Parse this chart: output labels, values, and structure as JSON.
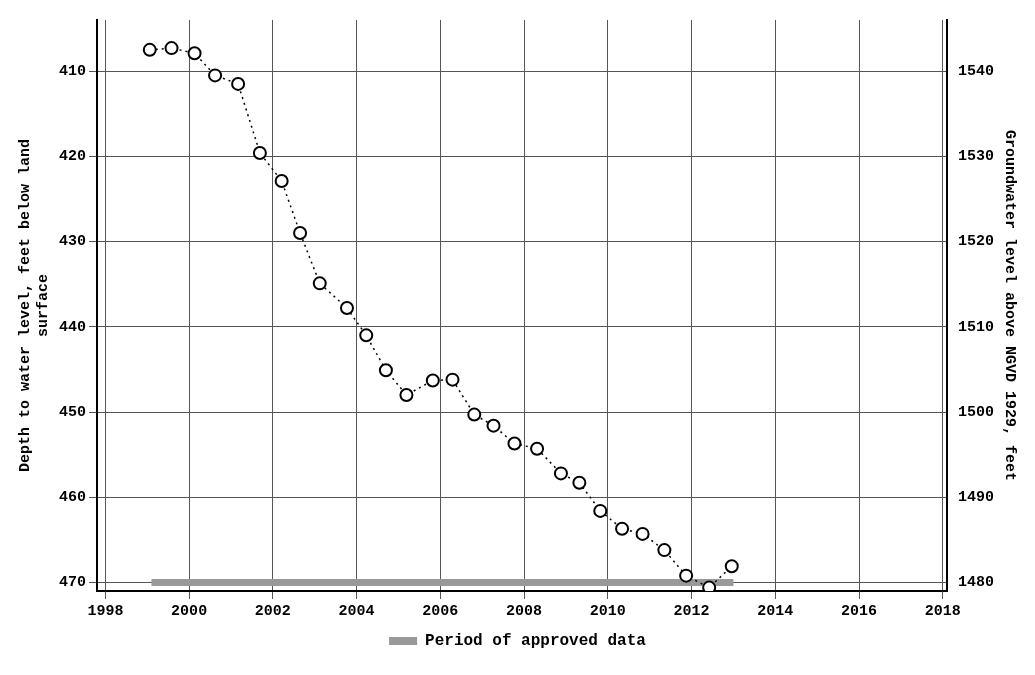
{
  "chart_data": {
    "type": "line",
    "xlabel": null,
    "ylabel": "Depth to water level, feet below land surface",
    "y2label": "Groundwater level above NGVD 1929, feet",
    "series": [
      {
        "color": "#000000",
        "marker": "circle",
        "line_style": "dotted",
        "x": [
          1999.06,
          1999.58,
          2000.13,
          2000.62,
          2001.17,
          2001.69,
          2002.21,
          2002.65,
          2003.12,
          2003.77,
          2004.23,
          2004.7,
          2005.19,
          2005.82,
          2006.29,
          2006.81,
          2007.27,
          2007.77,
          2008.31,
          2008.88,
          2009.32,
          2009.82,
          2010.34,
          2010.83,
          2011.35,
          2011.87,
          2012.42,
          2012.96
        ],
        "values": [
          407.5,
          407.3,
          407.9,
          410.5,
          411.5,
          419.6,
          422.9,
          429.0,
          434.9,
          437.8,
          441.0,
          445.1,
          448.0,
          446.3,
          446.2,
          450.3,
          451.6,
          453.7,
          454.3,
          457.2,
          458.3,
          461.6,
          463.7,
          464.3,
          466.2,
          469.2,
          470.6,
          468.1
        ]
      },
      {
        "name": "Period of approved data",
        "color": "#999999",
        "marker": "none",
        "line_style": "solid",
        "x": [
          1999.1,
          2013.0
        ],
        "values": [
          470,
          470
        ]
      }
    ],
    "xlim": [
      1997.8,
      2018.1
    ],
    "xticks": [
      1998,
      2000,
      2002,
      2004,
      2006,
      2008,
      2010,
      2012,
      2014,
      2016,
      2018
    ],
    "ylim": [
      471,
      404
    ],
    "yticks": [
      410,
      420,
      430,
      440,
      450,
      460,
      470
    ],
    "y2lim": [
      1479,
      1546
    ],
    "y2ticks": [
      1480,
      1490,
      1500,
      1510,
      1520,
      1530,
      1540
    ],
    "grid": true,
    "legend": "bottom"
  }
}
